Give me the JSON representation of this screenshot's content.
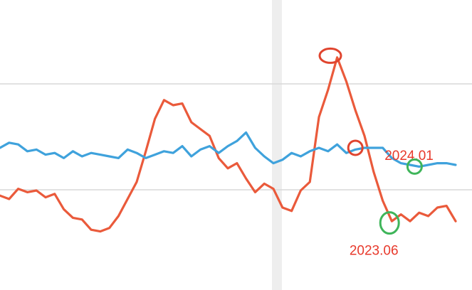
{
  "colors": {
    "background": "#ffffff",
    "gridline": "#d9d9d9",
    "band": "#eeeeee",
    "series_orange": "#ea5a3b",
    "series_blue": "#3fa2dc",
    "circle_red": "#e0442e",
    "circle_green": "#3fb55a",
    "label_red": "#e8392b"
  },
  "chart_data": {
    "type": "line",
    "title": "",
    "xlabel": "",
    "ylabel": "",
    "grid": "horizontal",
    "series": [
      {
        "color": "#ea5a3b",
        "x": [
          0,
          2,
          4,
          6,
          8,
          10,
          12,
          14,
          16,
          18,
          20,
          22,
          24,
          26,
          28,
          30,
          32,
          34,
          36,
          38,
          40,
          42,
          44,
          46,
          48,
          50,
          52,
          54,
          56,
          58,
          60,
          62,
          64,
          66,
          68,
          70,
          72,
          74,
          76,
          78,
          80,
          82,
          84,
          86,
          88,
          90,
          92,
          94,
          96,
          98,
          100
        ],
        "y": [
          52,
          50,
          56,
          54,
          55,
          51,
          53,
          44,
          39,
          38,
          32,
          31,
          33,
          40,
          50,
          60,
          78,
          97,
          108,
          105,
          106,
          95,
          91,
          87,
          74,
          68,
          71,
          62,
          54,
          59,
          56,
          45,
          43,
          55,
          60,
          98,
          114,
          133,
          119,
          102,
          87,
          66,
          49,
          37,
          41,
          37,
          42,
          40,
          45,
          46,
          37
        ]
      },
      {
        "color": "#3fa2dc",
        "x": [
          0,
          2,
          4,
          6,
          8,
          10,
          12,
          14,
          16,
          18,
          20,
          22,
          24,
          26,
          28,
          30,
          32,
          34,
          36,
          38,
          40,
          42,
          44,
          46,
          48,
          50,
          52,
          54,
          56,
          58,
          60,
          62,
          64,
          66,
          68,
          70,
          72,
          74,
          76,
          78,
          80,
          82,
          84,
          86,
          88,
          90,
          92,
          94,
          96,
          98,
          100
        ],
        "y": [
          80,
          83,
          82,
          78,
          79,
          76,
          77,
          74,
          78,
          75,
          77,
          76,
          75,
          74,
          79,
          77,
          74,
          76,
          78,
          77,
          81,
          75,
          79,
          81,
          77,
          81,
          84,
          89,
          80,
          75,
          71,
          73,
          77,
          75,
          78,
          80,
          78,
          82,
          77,
          79,
          80,
          80,
          80,
          74,
          71,
          70,
          69,
          70,
          71,
          71,
          70
        ]
      }
    ],
    "annotations": [
      {
        "label": "",
        "x": 72.5,
        "y": 134,
        "circle": "red"
      },
      {
        "label": "2024.01",
        "x": 78,
        "y": 80,
        "circle": "red"
      },
      {
        "label": "2023.06",
        "x": 85.5,
        "y": 36,
        "circle": "green"
      },
      {
        "label": "",
        "x": 91,
        "y": 69,
        "circle": "green"
      }
    ]
  }
}
